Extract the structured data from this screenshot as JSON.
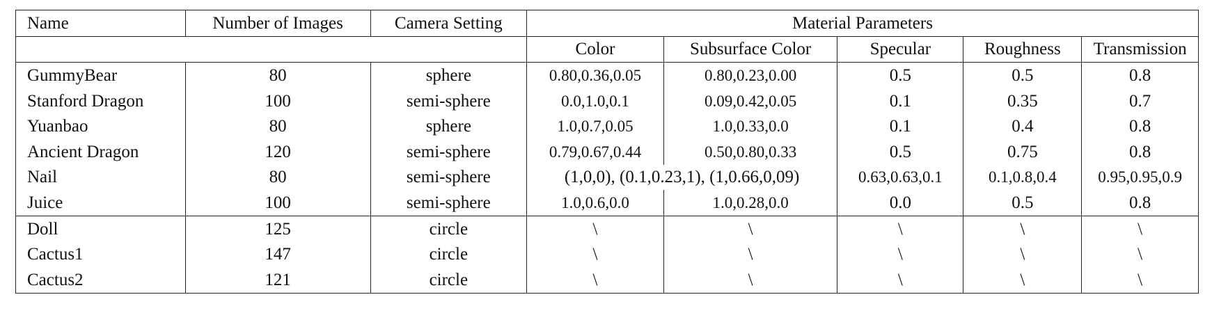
{
  "table": {
    "headers": {
      "name": "Name",
      "num_images": "Number of Images",
      "camera": "Camera Setting",
      "material": "Material Parameters",
      "sub": [
        "Color",
        "Subsurface Color",
        "Specular",
        "Roughness",
        "Transmission"
      ]
    },
    "rows": [
      {
        "name": "GummyBear",
        "num": "80",
        "camera": "sphere",
        "color": "0.80,0.36,0.05",
        "subsurface": "0.80,0.23,0.00",
        "specular": "0.5",
        "roughness": "0.5",
        "transmission": "0.8"
      },
      {
        "name": "Stanford Dragon",
        "num": "100",
        "camera": "semi-sphere",
        "color": "0.0,1.0,0.1",
        "subsurface": "0.09,0.42,0.05",
        "specular": "0.1",
        "roughness": "0.35",
        "transmission": "0.7"
      },
      {
        "name": "Yuanbao",
        "num": "80",
        "camera": "sphere",
        "color": "1.0,0.7,0.05",
        "subsurface": "1.0,0.33,0.0",
        "specular": "0.1",
        "roughness": "0.4",
        "transmission": "0.8"
      },
      {
        "name": "Ancient Dragon",
        "num": "120",
        "camera": "semi-sphere",
        "color": "0.79,0.67,0.44",
        "subsurface": "0.50,0.80,0.33",
        "specular": "0.5",
        "roughness": "0.75",
        "transmission": "0.8"
      },
      {
        "name": "Nail",
        "num": "80",
        "camera": "semi-sphere",
        "color_merged": "(1,0,0), (0.1,0.23,1), (1,0.66,0,09)",
        "specular": "0.63,0.63,0.1",
        "roughness": "0.1,0.8,0.4",
        "transmission": "0.95,0.95,0.9"
      },
      {
        "name": "Juice",
        "num": "100",
        "camera": "semi-sphere",
        "color": "1.0,0.6,0.0",
        "subsurface": "1.0,0.28,0.0",
        "specular": "0.0",
        "roughness": "0.5",
        "transmission": "0.8"
      }
    ],
    "rows2": [
      {
        "name": "Doll",
        "num": "125",
        "camera": "circle",
        "color": "\\",
        "subsurface": "\\",
        "specular": "\\",
        "roughness": "\\",
        "transmission": "\\"
      },
      {
        "name": "Cactus1",
        "num": "147",
        "camera": "circle",
        "color": "\\",
        "subsurface": "\\",
        "specular": "\\",
        "roughness": "\\",
        "transmission": "\\"
      },
      {
        "name": "Cactus2",
        "num": "121",
        "camera": "circle",
        "color": "\\",
        "subsurface": "\\",
        "specular": "\\",
        "roughness": "\\",
        "transmission": "\\"
      }
    ]
  }
}
